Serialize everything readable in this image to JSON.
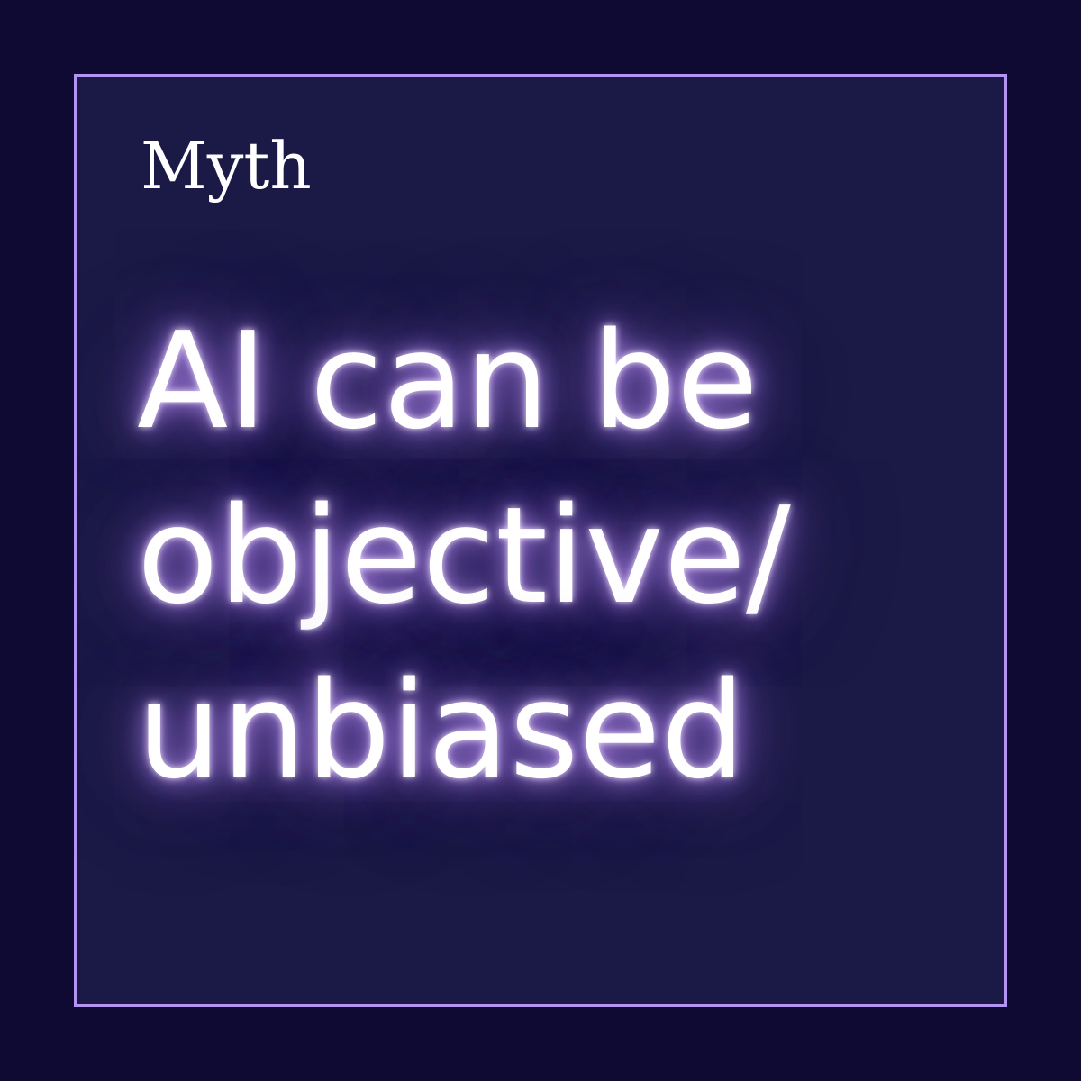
{
  "background_color": "#0e0a33",
  "card": {
    "border_color": "#b394f2",
    "background_color": "#1b1945",
    "label": "Myth",
    "statement_lines": [
      "AI can be",
      "objective/",
      "unbiased"
    ],
    "glow_color": "#9a78d6"
  }
}
